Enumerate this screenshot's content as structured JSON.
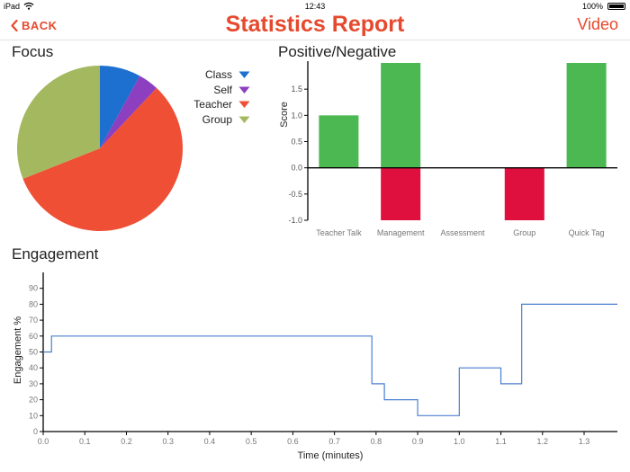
{
  "status_bar": {
    "device": "iPad",
    "wifi_icon": "wifi-icon",
    "time": "12:43",
    "battery": "100%",
    "battery_fill": 1.0
  },
  "nav": {
    "back_label": "BACK",
    "title": "Statistics Report",
    "video_label": "Video",
    "accent_color": "#e6492d"
  },
  "sections": {
    "focus": "Focus",
    "positive_negative": "Positive/Negative",
    "engagement": "Engagement"
  },
  "chart_data": [
    {
      "type": "pie",
      "title": "Focus",
      "legend_position": "right",
      "slices": [
        {
          "label": "Class",
          "value": 8,
          "color": "#1d6fd0"
        },
        {
          "label": "Self",
          "value": 4,
          "color": "#8c3fbf"
        },
        {
          "label": "Teacher",
          "value": 57,
          "color": "#ef4f35"
        },
        {
          "label": "Group",
          "value": 31,
          "color": "#a4b85f"
        }
      ]
    },
    {
      "type": "bar",
      "title": "Positive/Negative",
      "ylabel": "Score",
      "ylim": [
        -1.0,
        2.0
      ],
      "yticks": [
        "-1.0",
        "-0.5",
        "0.0",
        "0.5",
        "1.0",
        "1.5"
      ],
      "categories": [
        "Teacher Talk",
        "Management",
        "Assessment",
        "Group",
        "Quick Tag"
      ],
      "series": [
        {
          "name": "Positive",
          "color": "#4cb852",
          "values": [
            1,
            2,
            0,
            0,
            2
          ]
        },
        {
          "name": "Negative",
          "color": "#e0103e",
          "values": [
            0,
            -1,
            0,
            -1,
            0
          ]
        }
      ]
    },
    {
      "type": "line",
      "title": "Engagement",
      "xlabel": "Time (minutes)",
      "ylabel": "Engagement %",
      "xlim": [
        0.0,
        1.38
      ],
      "ylim": [
        0,
        100
      ],
      "xticks": [
        "0.0",
        "0.1",
        "0.2",
        "0.3",
        "0.4",
        "0.5",
        "0.6",
        "0.7",
        "0.8",
        "0.9",
        "1.0",
        "1.1",
        "1.2",
        "1.3"
      ],
      "yticks": [
        "0",
        "10",
        "20",
        "30",
        "40",
        "50",
        "60",
        "70",
        "80",
        "90"
      ],
      "step": true,
      "color": "#4a7ed0",
      "points": [
        {
          "x": 0.0,
          "y": 50
        },
        {
          "x": 0.02,
          "y": 60
        },
        {
          "x": 0.79,
          "y": 30
        },
        {
          "x": 0.82,
          "y": 20
        },
        {
          "x": 0.9,
          "y": 10
        },
        {
          "x": 1.0,
          "y": 40
        },
        {
          "x": 1.1,
          "y": 30
        },
        {
          "x": 1.15,
          "y": 80
        },
        {
          "x": 1.38,
          "y": 80
        }
      ]
    }
  ]
}
